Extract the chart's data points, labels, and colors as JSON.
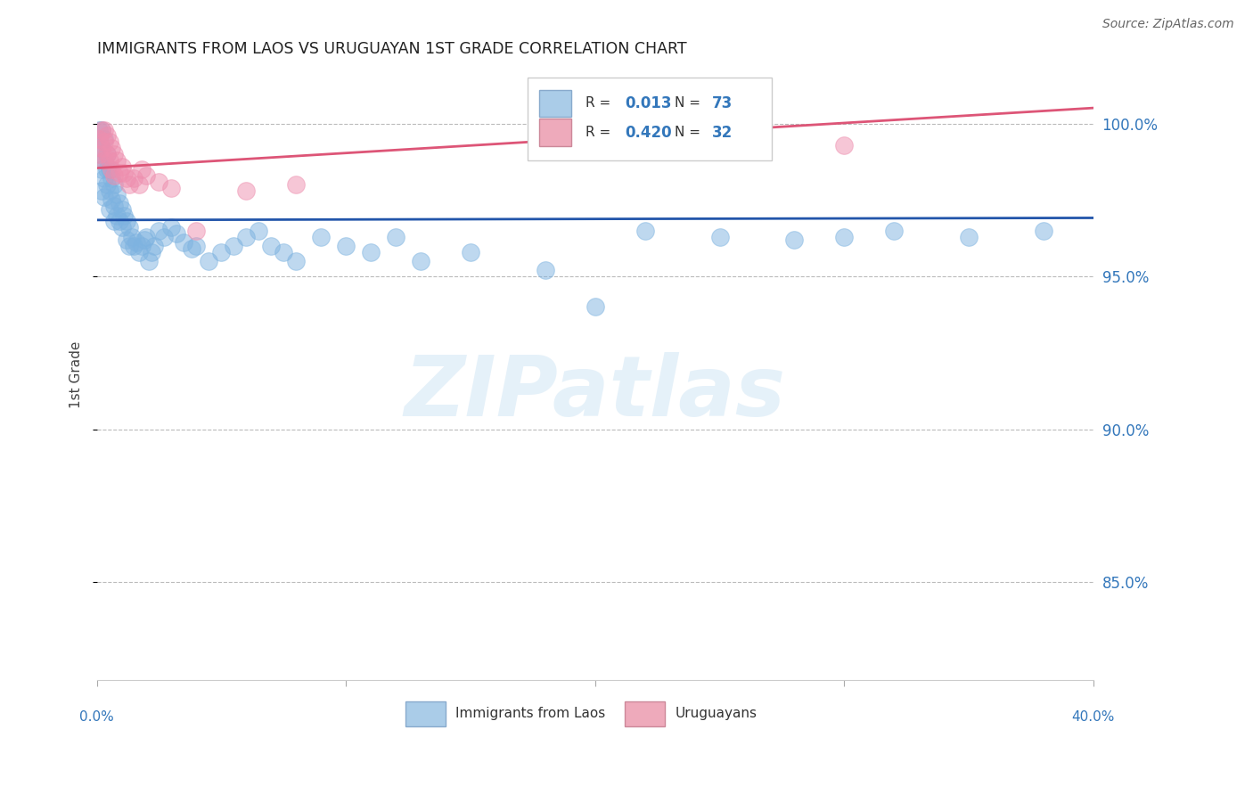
{
  "title": "IMMIGRANTS FROM LAOS VS URUGUAYAN 1ST GRADE CORRELATION CHART",
  "source": "Source: ZipAtlas.com",
  "ylabel": "1st Grade",
  "yticks": [
    0.85,
    0.9,
    0.95,
    1.0
  ],
  "ytick_labels": [
    "85.0%",
    "90.0%",
    "95.0%",
    "100.0%"
  ],
  "xlim": [
    0.0,
    0.4
  ],
  "ylim": [
    0.818,
    1.018
  ],
  "legend1_label": "Immigrants from Laos",
  "legend2_label": "Uruguayans",
  "R_blue": "0.013",
  "N_blue": "73",
  "R_pink": "0.420",
  "N_pink": "32",
  "blue_color": "#7EB3E0",
  "pink_color": "#EE8FAF",
  "blue_line_color": "#2255AA",
  "pink_line_color": "#DD5577",
  "watermark_text": "ZIPatlas",
  "blue_x": [
    0.001,
    0.001,
    0.001,
    0.002,
    0.002,
    0.002,
    0.002,
    0.003,
    0.003,
    0.003,
    0.003,
    0.004,
    0.004,
    0.004,
    0.005,
    0.005,
    0.005,
    0.006,
    0.006,
    0.007,
    0.007,
    0.007,
    0.008,
    0.008,
    0.009,
    0.009,
    0.01,
    0.01,
    0.011,
    0.012,
    0.012,
    0.013,
    0.013,
    0.014,
    0.015,
    0.016,
    0.017,
    0.018,
    0.019,
    0.02,
    0.021,
    0.022,
    0.023,
    0.025,
    0.027,
    0.03,
    0.032,
    0.035,
    0.038,
    0.04,
    0.045,
    0.05,
    0.055,
    0.06,
    0.065,
    0.07,
    0.075,
    0.08,
    0.09,
    0.1,
    0.11,
    0.12,
    0.13,
    0.15,
    0.18,
    0.2,
    0.22,
    0.25,
    0.28,
    0.3,
    0.32,
    0.35,
    0.38
  ],
  "blue_y": [
    0.998,
    0.995,
    0.99,
    0.998,
    0.992,
    0.985,
    0.978,
    0.995,
    0.988,
    0.982,
    0.976,
    0.99,
    0.985,
    0.98,
    0.985,
    0.978,
    0.972,
    0.982,
    0.975,
    0.98,
    0.973,
    0.968,
    0.977,
    0.97,
    0.974,
    0.968,
    0.972,
    0.966,
    0.97,
    0.968,
    0.962,
    0.966,
    0.96,
    0.963,
    0.96,
    0.961,
    0.958,
    0.96,
    0.962,
    0.963,
    0.955,
    0.958,
    0.96,
    0.965,
    0.963,
    0.966,
    0.964,
    0.961,
    0.959,
    0.96,
    0.955,
    0.958,
    0.96,
    0.963,
    0.965,
    0.96,
    0.958,
    0.955,
    0.963,
    0.96,
    0.958,
    0.963,
    0.955,
    0.958,
    0.952,
    0.94,
    0.965,
    0.963,
    0.962,
    0.963,
    0.965,
    0.963,
    0.965
  ],
  "pink_x": [
    0.001,
    0.001,
    0.002,
    0.002,
    0.003,
    0.003,
    0.003,
    0.004,
    0.004,
    0.005,
    0.005,
    0.006,
    0.006,
    0.007,
    0.007,
    0.008,
    0.009,
    0.01,
    0.011,
    0.012,
    0.013,
    0.015,
    0.017,
    0.018,
    0.02,
    0.025,
    0.03,
    0.04,
    0.06,
    0.08,
    0.2,
    0.3
  ],
  "pink_y": [
    0.995,
    0.99,
    0.998,
    0.992,
    0.998,
    0.994,
    0.988,
    0.996,
    0.99,
    0.994,
    0.988,
    0.992,
    0.985,
    0.99,
    0.983,
    0.988,
    0.984,
    0.986,
    0.984,
    0.982,
    0.98,
    0.982,
    0.98,
    0.985,
    0.983,
    0.981,
    0.979,
    0.965,
    0.978,
    0.98,
    0.997,
    0.993
  ]
}
